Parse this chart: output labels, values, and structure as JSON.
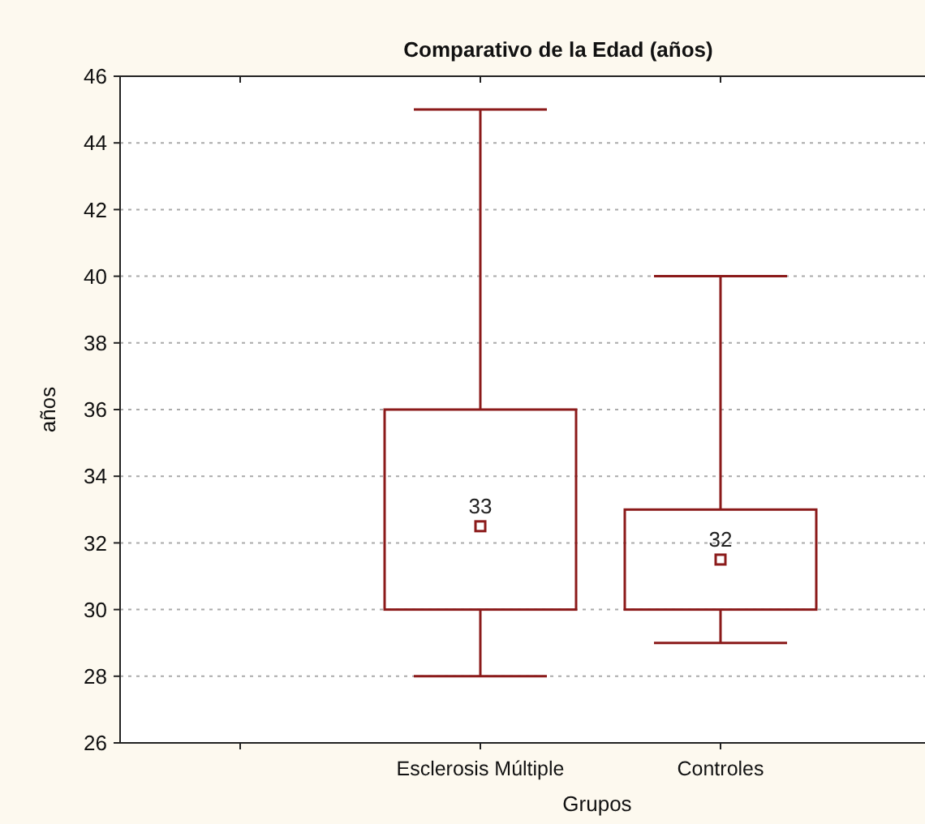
{
  "chart_data": {
    "type": "box",
    "title": "Comparativo de la Edad (años)",
    "xlabel": "Grupos",
    "ylabel": "años",
    "categories": [
      null,
      "Esclerosis Múltiple",
      "Controles"
    ],
    "boxes": [
      null,
      {
        "low": 28,
        "q1": 30,
        "median": 32.5,
        "q3": 36,
        "high": 45
      },
      {
        "low": 29,
        "q1": 30,
        "median": 31.5,
        "q3": 33,
        "high": 40
      }
    ],
    "color": "#8b1a1a",
    "marker": "square",
    "annotations": [
      {
        "text": "33",
        "x": "Esclerosis Múltiple",
        "y": 32.5
      },
      {
        "text": "32",
        "x": "Controles",
        "y": 31.5
      }
    ],
    "ylim": [
      26,
      46
    ],
    "yticks": [
      26,
      28,
      30,
      32,
      34,
      36,
      38,
      40,
      42,
      44,
      46
    ],
    "grid": "y"
  }
}
